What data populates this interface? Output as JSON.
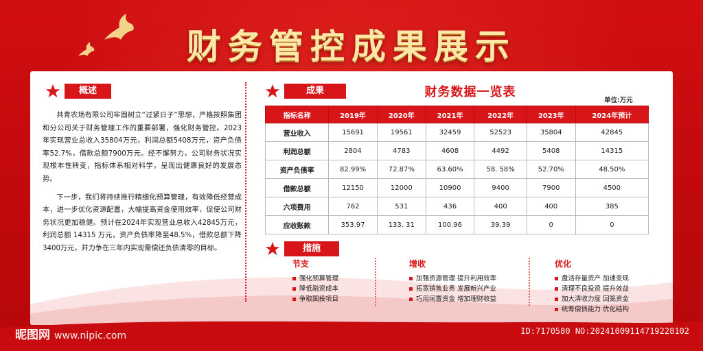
{
  "title": "财务管控成果展示",
  "overview": {
    "tag": "概述",
    "paragraphs": [
      "共青农场有限公司牢固树立“过紧日子”思想，严格按照集团和分公司关于财务管理工作的重要部署，强化财务管控。2023年实现营业总收入35804万元，利润总额5408万元，资产负债率52.7%，借款总额7900万元。经不懈努力，公司财务状况实现根本性转变，指标体系相对科学，呈现出健康良好的发展态势。",
      "下一步，我们将持续推行精细化预算管理，有效降低经营成本，进一步优化资源配置，大幅提高资金使用效率，促使公司财务状况更加稳健。预计在2024年实现营业总收入42845万元，利润总额 14315 万元，资产负债率降至48.5%，借款总额下降3400万元，并力争在三年内实现需偿还负债清零的目标。"
    ]
  },
  "results": {
    "tag": "成果",
    "table_title": "财务数据一览表",
    "unit": "单位:万元",
    "headers": [
      "指标名称",
      "2019年",
      "2020年",
      "2021年",
      "2022年",
      "2023年",
      "2024年预计"
    ],
    "rows": [
      [
        "营业收入",
        "15691",
        "19561",
        "32459",
        "52523",
        "35804",
        "42845"
      ],
      [
        "利润总额",
        "2804",
        "4783",
        "4608",
        "4492",
        "5408",
        "14315"
      ],
      [
        "资产负债率",
        "82.99%",
        "72.87%",
        "63.60%",
        "58. 58%",
        "52.70%",
        "48.50%"
      ],
      [
        "借款总额",
        "12150",
        "12000",
        "10900",
        "9400",
        "7900",
        "4500"
      ],
      [
        "六项费用",
        "762",
        "531",
        "436",
        "400",
        "400",
        "385"
      ],
      [
        "应收账款",
        "353.97",
        "133. 31",
        "100.96",
        "39.39",
        "0",
        "0"
      ]
    ]
  },
  "measures": {
    "tag": "措施",
    "columns": [
      {
        "heading": "节支",
        "items": [
          "强化预算管理",
          "降低融资成本",
          "争取国投项目"
        ]
      },
      {
        "heading": "增收",
        "items": [
          "加强资源管理 提升利用效率",
          "拓宽销售业务 发展新兴产业",
          "巧用闲置资金 增加理财收益"
        ]
      },
      {
        "heading": "优化",
        "items": [
          "盘活存量资产 加速变现",
          "清理不良投资 提升效益",
          "加大清收力度 回笼资金",
          "统筹偿债能力 优化结构"
        ]
      }
    ]
  },
  "watermark": {
    "brand": "昵图网",
    "site": "www.nipic.com",
    "id_text": "ID:7170580 NO:20241009114719228102"
  },
  "colors": {
    "primary_red": "#d8161a",
    "title_gold": "#ffe7a8"
  }
}
